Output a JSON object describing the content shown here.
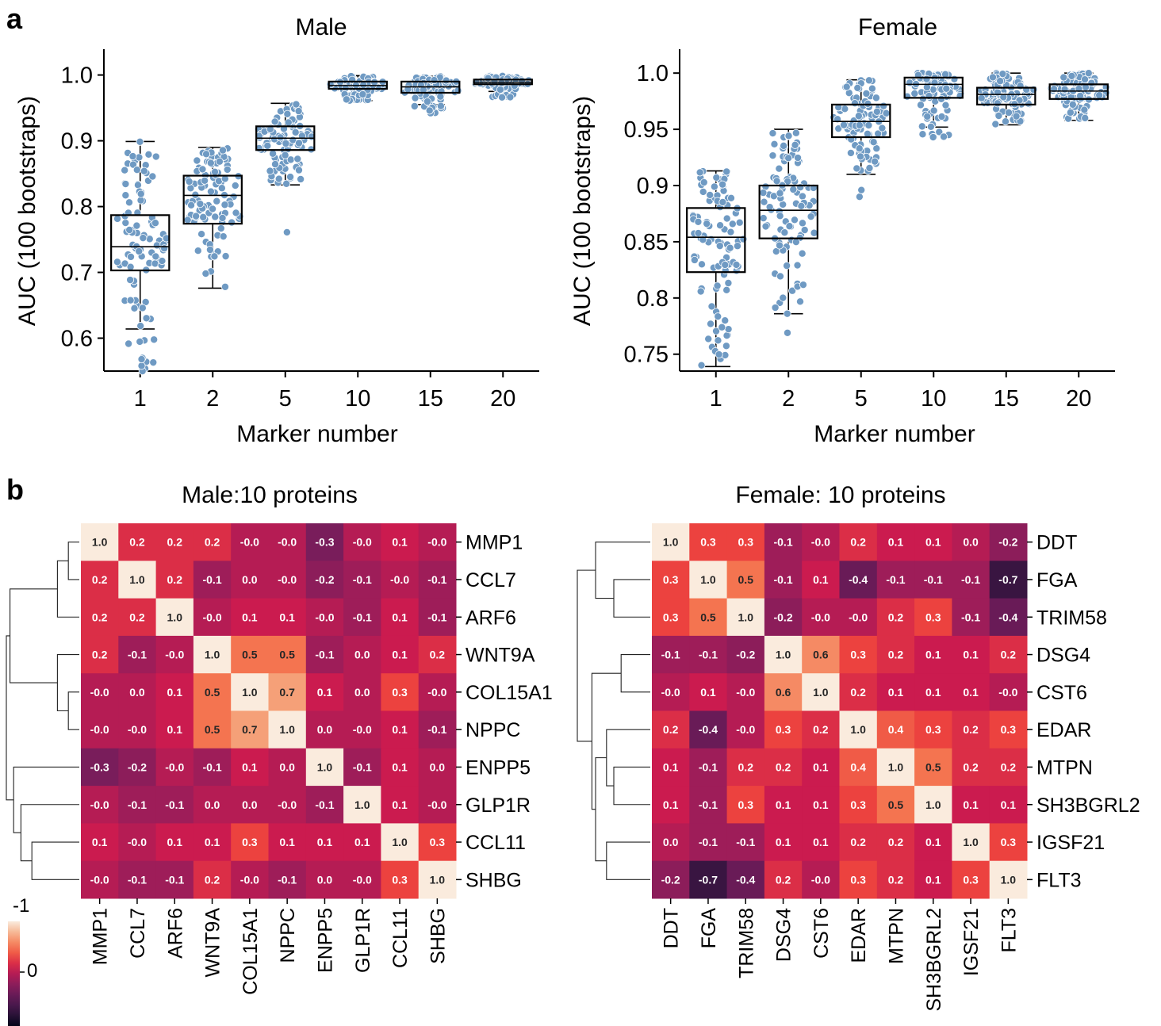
{
  "panel_labels": [
    "a",
    "b"
  ],
  "chart_data": [
    {
      "type": "box",
      "title": "Male",
      "xlabel": "Marker number",
      "ylabel": "AUC (100 bootstraps)",
      "categories": [
        "1",
        "2",
        "5",
        "10",
        "15",
        "20"
      ],
      "yticks": [
        "0.6",
        "0.7",
        "0.8",
        "0.9",
        "1.0"
      ],
      "ylim": [
        0.55,
        1.02
      ],
      "boxes": [
        {
          "whislo": 0.614,
          "q1": 0.703,
          "med": 0.739,
          "q3": 0.787,
          "whishi": 0.899,
          "points_range": [
            0.55,
            0.899
          ],
          "outliers": [
            0.55,
            0.558,
            0.568
          ]
        },
        {
          "whislo": 0.676,
          "q1": 0.774,
          "med": 0.817,
          "q3": 0.847,
          "whishi": 0.89,
          "points_range": [
            0.676,
            0.89
          ],
          "outliers": []
        },
        {
          "whislo": 0.833,
          "q1": 0.886,
          "med": 0.904,
          "q3": 0.922,
          "whishi": 0.957,
          "points_range": [
            0.833,
            0.957
          ],
          "outliers": [
            0.761
          ]
        },
        {
          "whislo": 0.961,
          "q1": 0.979,
          "med": 0.984,
          "q3": 0.99,
          "whishi": 0.999,
          "points_range": [
            0.961,
            0.999
          ],
          "outliers": []
        },
        {
          "whislo": 0.955,
          "q1": 0.973,
          "med": 0.982,
          "q3": 0.99,
          "whishi": 0.998,
          "points_range": [
            0.942,
            0.998
          ],
          "outliers": [
            0.942,
            0.946
          ]
        },
        {
          "whislo": 0.975,
          "q1": 0.986,
          "med": 0.989,
          "q3": 0.993,
          "whishi": 0.999,
          "points_range": [
            0.966,
            0.999
          ],
          "outliers": [
            0.966
          ]
        }
      ],
      "point_color": "#6f9ac3"
    },
    {
      "type": "box",
      "title": "Female",
      "xlabel": "Marker number",
      "ylabel": "AUC (100 bootstraps)",
      "categories": [
        "1",
        "2",
        "5",
        "10",
        "15",
        "20"
      ],
      "yticks": [
        "0.75",
        "0.8",
        "0.85",
        "0.9",
        "0.95",
        "1.0"
      ],
      "ylim": [
        0.735,
        1.01
      ],
      "boxes": [
        {
          "whislo": 0.739,
          "q1": 0.823,
          "med": 0.854,
          "q3": 0.88,
          "whishi": 0.913,
          "points_range": [
            0.739,
            0.913
          ],
          "outliers": []
        },
        {
          "whislo": 0.786,
          "q1": 0.853,
          "med": 0.878,
          "q3": 0.9,
          "whishi": 0.95,
          "points_range": [
            0.786,
            0.947
          ],
          "outliers": [
            0.769
          ]
        },
        {
          "whislo": 0.91,
          "q1": 0.943,
          "med": 0.957,
          "q3": 0.972,
          "whishi": 0.994,
          "points_range": [
            0.91,
            0.994
          ],
          "outliers": [
            0.89,
            0.896
          ]
        },
        {
          "whislo": 0.952,
          "q1": 0.978,
          "med": 0.99,
          "q3": 0.996,
          "whishi": 1.0,
          "points_range": [
            0.943,
            1.0
          ],
          "outliers": [
            0.943
          ]
        },
        {
          "whislo": 0.954,
          "q1": 0.972,
          "med": 0.981,
          "q3": 0.987,
          "whishi": 1.0,
          "points_range": [
            0.954,
            1.0
          ],
          "outliers": []
        },
        {
          "whislo": 0.958,
          "q1": 0.977,
          "med": 0.984,
          "q3": 0.99,
          "whishi": 1.0,
          "points_range": [
            0.958,
            1.0
          ],
          "outliers": []
        }
      ],
      "point_color": "#6f9ac3"
    },
    {
      "type": "heatmap",
      "title": "Male:10 proteins",
      "labels": [
        "MMP1",
        "CCL7",
        "ARF6",
        "WNT9A",
        "COL15A1",
        "NPPC",
        "ENPP5",
        "GLP1R",
        "CCL11",
        "SHBG"
      ],
      "matrix": [
        [
          "1.0",
          "0.2",
          "0.2",
          "0.2",
          "-0.0",
          "-0.0",
          "-0.3",
          "-0.0",
          "0.1",
          "-0.0"
        ],
        [
          "0.2",
          "1.0",
          "0.2",
          "-0.1",
          "0.0",
          "-0.0",
          "-0.2",
          "-0.1",
          "-0.0",
          "-0.1"
        ],
        [
          "0.2",
          "0.2",
          "1.0",
          "-0.0",
          "0.1",
          "0.1",
          "-0.0",
          "-0.1",
          "0.1",
          "-0.1"
        ],
        [
          "0.2",
          "-0.1",
          "-0.0",
          "1.0",
          "0.5",
          "0.5",
          "-0.1",
          "0.0",
          "0.1",
          "0.2"
        ],
        [
          "-0.0",
          "0.0",
          "0.1",
          "0.5",
          "1.0",
          "0.7",
          "0.1",
          "0.0",
          "0.3",
          "-0.0"
        ],
        [
          "-0.0",
          "-0.0",
          "0.1",
          "0.5",
          "0.7",
          "1.0",
          "0.0",
          "-0.0",
          "0.1",
          "-0.1"
        ],
        [
          "-0.3",
          "-0.2",
          "-0.0",
          "-0.1",
          "0.1",
          "0.0",
          "1.0",
          "-0.1",
          "0.1",
          "0.0"
        ],
        [
          "-0.0",
          "-0.1",
          "-0.1",
          "0.0",
          "0.0",
          "-0.0",
          "-0.1",
          "1.0",
          "0.1",
          "-0.0"
        ],
        [
          "0.1",
          "-0.0",
          "0.1",
          "0.1",
          "0.3",
          "0.1",
          "0.1",
          "0.1",
          "1.0",
          "0.3"
        ],
        [
          "-0.0",
          "-0.1",
          "-0.1",
          "0.2",
          "-0.0",
          "-0.1",
          "0.0",
          "-0.0",
          "0.3",
          "1.0"
        ]
      ],
      "dendrogram": [
        {
          "a": 0,
          "b": 1,
          "ha": 0,
          "hb": 0,
          "h": 0.15
        },
        {
          "a": 0,
          "b": 2,
          "ha": 0.15,
          "hb": 0,
          "h": 0.3
        },
        {
          "a": 4,
          "b": 5,
          "ha": 0,
          "hb": 0,
          "h": 0.15
        },
        {
          "a": 3,
          "b": 4,
          "ha": 0,
          "hb": 0.15,
          "h": 0.3
        },
        {
          "a": 0,
          "b": 3,
          "ha": 0.3,
          "hb": 0.3,
          "h": 0.95
        },
        {
          "a": 8,
          "b": 9,
          "ha": 0,
          "hb": 0,
          "h": 0.65
        },
        {
          "a": 7,
          "b": 8,
          "ha": 0,
          "hb": 0.65,
          "h": 0.8
        },
        {
          "a": 6,
          "b": 7,
          "ha": 0,
          "hb": 0.8,
          "h": 0.9
        },
        {
          "a": 0,
          "b": 6,
          "ha": 0.95,
          "hb": 0.9,
          "h": 1.0
        }
      ]
    },
    {
      "type": "heatmap",
      "title": "Female: 10 proteins",
      "labels": [
        "DDT",
        "FGA",
        "TRIM58",
        "DSG4",
        "CST6",
        "EDAR",
        "MTPN",
        "SH3BGRL2",
        "IGSF21",
        "FLT3"
      ],
      "matrix": [
        [
          "1.0",
          "0.3",
          "0.3",
          "-0.1",
          "-0.0",
          "0.2",
          "0.1",
          "0.1",
          "0.0",
          "-0.2"
        ],
        [
          "0.3",
          "1.0",
          "0.5",
          "-0.1",
          "0.1",
          "-0.4",
          "-0.1",
          "-0.1",
          "-0.1",
          "-0.7"
        ],
        [
          "0.3",
          "0.5",
          "1.0",
          "-0.2",
          "-0.0",
          "-0.0",
          "0.2",
          "0.3",
          "-0.1",
          "-0.4"
        ],
        [
          "-0.1",
          "-0.1",
          "-0.2",
          "1.0",
          "0.6",
          "0.3",
          "0.2",
          "0.1",
          "0.1",
          "0.2"
        ],
        [
          "-0.0",
          "0.1",
          "-0.0",
          "0.6",
          "1.0",
          "0.2",
          "0.1",
          "0.1",
          "0.1",
          "-0.0"
        ],
        [
          "0.2",
          "-0.4",
          "-0.0",
          "0.3",
          "0.2",
          "1.0",
          "0.4",
          "0.3",
          "0.2",
          "0.3"
        ],
        [
          "0.1",
          "-0.1",
          "0.2",
          "0.2",
          "0.1",
          "0.4",
          "1.0",
          "0.5",
          "0.2",
          "0.2"
        ],
        [
          "0.1",
          "-0.1",
          "0.3",
          "0.1",
          "0.1",
          "0.3",
          "0.5",
          "1.0",
          "0.1",
          "0.1"
        ],
        [
          "0.0",
          "-0.1",
          "-0.1",
          "0.1",
          "0.1",
          "0.2",
          "0.2",
          "0.1",
          "1.0",
          "0.3"
        ],
        [
          "-0.2",
          "-0.7",
          "-0.4",
          "0.2",
          "-0.0",
          "0.3",
          "0.2",
          "0.1",
          "0.3",
          "1.0"
        ]
      ],
      "dendrogram": [
        {
          "a": 1,
          "b": 2,
          "ha": 0,
          "hb": 0,
          "h": 0.5
        },
        {
          "a": 0,
          "b": 1,
          "ha": 0,
          "hb": 0.5,
          "h": 0.75
        },
        {
          "a": 3,
          "b": 4,
          "ha": 0,
          "hb": 0,
          "h": 0.4
        },
        {
          "a": 6,
          "b": 7,
          "ha": 0,
          "hb": 0,
          "h": 0.5
        },
        {
          "a": 5,
          "b": 6,
          "ha": 0,
          "hb": 0.5,
          "h": 0.6
        },
        {
          "a": 8,
          "b": 9,
          "ha": 0,
          "hb": 0,
          "h": 0.6
        },
        {
          "a": 5,
          "b": 8,
          "ha": 0.6,
          "hb": 0.6,
          "h": 0.75
        },
        {
          "a": 3,
          "b": 5,
          "ha": 0.4,
          "hb": 0.75,
          "h": 0.8
        },
        {
          "a": 0,
          "b": 3,
          "ha": 0.75,
          "hb": 0.8,
          "h": 1.0
        }
      ]
    }
  ],
  "colorbar": {
    "tick_labels": [
      "-1",
      "0"
    ],
    "vmin": -1,
    "vmax": 1
  }
}
